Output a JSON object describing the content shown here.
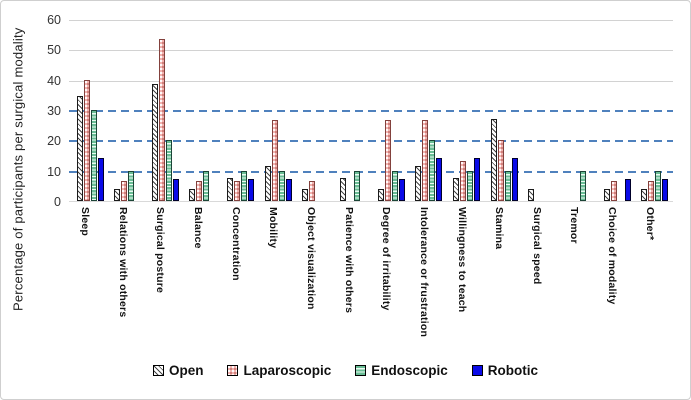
{
  "chart_data": {
    "type": "bar",
    "title": "",
    "ylabel": "Percentage of participants per surgical modality",
    "xlabel": "",
    "ylim": [
      0,
      60
    ],
    "yticks": [
      0,
      10,
      20,
      30,
      40,
      50,
      60
    ],
    "solid_gridlines": [
      40,
      50,
      60
    ],
    "dashed_gridlines": [
      10,
      20,
      30
    ],
    "legend_position": "bottom",
    "categories": [
      "Sleep",
      "Relations with others",
      "Surgical posture",
      "Balance",
      "Concentration",
      "Mobility",
      "Object visualization",
      "Patience with others",
      "Degree of irritability",
      "Intolerance or frustration",
      "Willingness to teach",
      "Stamina",
      "Surgical speed",
      "Tremor",
      "Choice of modality",
      "Other*"
    ],
    "series": [
      {
        "name": "Open",
        "values": [
          34.6,
          3.8,
          38.5,
          3.8,
          7.7,
          11.5,
          3.8,
          7.7,
          3.8,
          11.5,
          7.7,
          26.9,
          3.8,
          0,
          3.8,
          3.8
        ]
      },
      {
        "name": "Laparoscopic",
        "values": [
          40,
          6.7,
          53.3,
          6.7,
          6.7,
          26.7,
          6.7,
          0,
          26.7,
          26.7,
          13.3,
          20,
          0,
          0,
          6.7,
          6.7
        ]
      },
      {
        "name": "Endoscopic",
        "values": [
          30,
          10,
          20,
          10,
          10,
          10,
          0,
          10,
          10,
          20,
          10,
          10,
          0,
          10,
          0,
          10
        ]
      },
      {
        "name": "Robotic",
        "values": [
          14.3,
          0,
          7.1,
          0,
          7.1,
          7.1,
          0,
          0,
          7.1,
          14.3,
          14.3,
          14.3,
          0,
          0,
          7.1,
          7.1
        ]
      }
    ],
    "colors": {
      "open_hatch": "#474747",
      "laparoscopic_fill": "#f3b3b0",
      "endoscopic_fill": "#69bd95",
      "robotic_fill": "#0a0ae8",
      "dashed_gridline": "#4f81bd",
      "solid_gridline": "#d2d2d2"
    }
  }
}
